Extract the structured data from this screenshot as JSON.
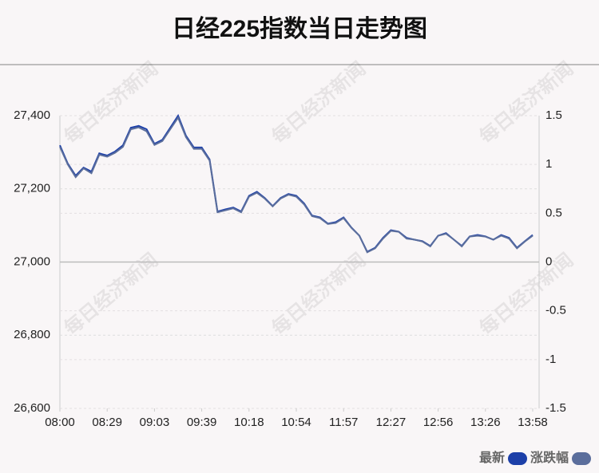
{
  "chart_data": {
    "type": "line",
    "title": "日经225指数当日走势图",
    "watermark": "每日经济新闻",
    "categories": [
      "08:00",
      null,
      null,
      null,
      null,
      null,
      "08:29",
      null,
      null,
      null,
      null,
      null,
      "09:03",
      null,
      null,
      null,
      null,
      null,
      "09:39",
      null,
      null,
      null,
      null,
      null,
      "10:18",
      null,
      null,
      null,
      null,
      null,
      "10:54",
      null,
      null,
      null,
      null,
      null,
      "11:57",
      null,
      null,
      null,
      null,
      null,
      "12:27",
      null,
      null,
      null,
      null,
      null,
      "12:56",
      null,
      null,
      null,
      null,
      null,
      "13:26",
      null,
      null,
      null,
      null,
      null,
      "13:58"
    ],
    "series": [
      {
        "name": "最新",
        "color": "#1c3fa8",
        "values": [
          27319,
          27269,
          27236,
          27258,
          27247,
          27297,
          27291,
          27302,
          27319,
          27367,
          27372,
          27363,
          27323,
          27334,
          27367,
          27400,
          27345,
          27313,
          27313,
          27280,
          27138,
          27144,
          27149,
          27138,
          27181,
          27192,
          27175,
          27153,
          27175,
          27186,
          27181,
          27160,
          27127,
          27122,
          27105,
          27109,
          27122,
          27094,
          27072,
          27028,
          27039,
          27066,
          27087,
          27083,
          27066,
          27061,
          27057,
          27044,
          27072,
          27079,
          27061,
          27044,
          27070,
          27074,
          27070,
          27061,
          27074,
          27066,
          27039,
          27057,
          27074
        ]
      },
      {
        "name": "涨跌幅",
        "color": "#5b6e9c",
        "axis": "y2",
        "values": [
          1.18,
          1.0,
          0.87,
          0.96,
          0.91,
          1.1,
          1.08,
          1.12,
          1.18,
          1.36,
          1.38,
          1.34,
          1.2,
          1.24,
          1.36,
          1.48,
          1.28,
          1.16,
          1.16,
          1.04,
          0.51,
          0.53,
          0.55,
          0.51,
          0.67,
          0.71,
          0.65,
          0.57,
          0.65,
          0.69,
          0.67,
          0.59,
          0.47,
          0.45,
          0.39,
          0.4,
          0.45,
          0.35,
          0.27,
          0.1,
          0.14,
          0.24,
          0.32,
          0.31,
          0.24,
          0.23,
          0.21,
          0.16,
          0.27,
          0.29,
          0.23,
          0.16,
          0.26,
          0.27,
          0.26,
          0.23,
          0.27,
          0.24,
          0.14,
          0.21,
          0.27
        ]
      }
    ],
    "ylim": [
      26600,
      27400
    ],
    "yticks": [
      {
        "value": 26600,
        "label": "26,600"
      },
      {
        "value": 26800,
        "label": "26,800"
      },
      {
        "value": 27000,
        "label": "27,000"
      },
      {
        "value": 27200,
        "label": "27,200"
      },
      {
        "value": 27400,
        "label": "27,400"
      }
    ],
    "y2lim": [
      -1.5,
      1.5
    ],
    "y2ticks": [
      -1.5,
      -1,
      -0.5,
      0,
      0.5,
      1,
      1.5
    ],
    "grid": true,
    "legend": "bottom-right"
  }
}
